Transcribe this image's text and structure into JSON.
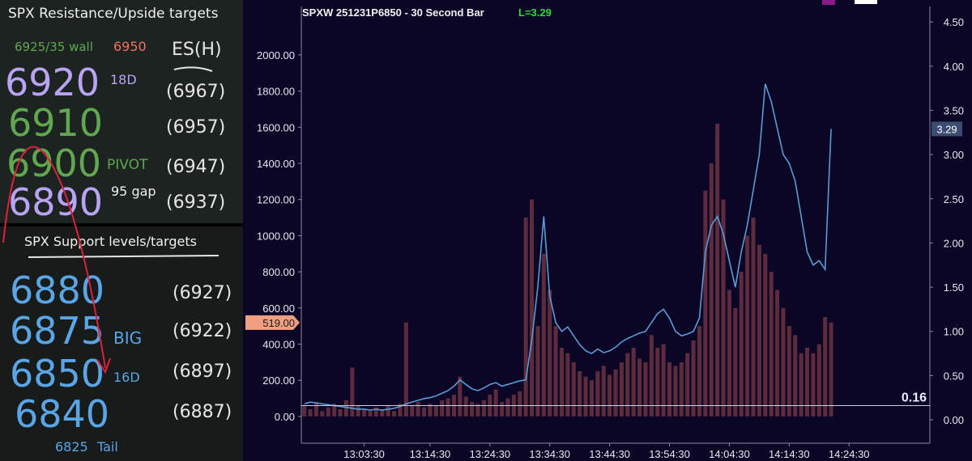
{
  "panels": [
    {
      "title": "SPX Resistance/Upside targets",
      "wall": "6925/35 wall",
      "wall_high": "6950",
      "es_header": "ES(H)",
      "levels": [
        {
          "level": "6920",
          "note": "18D",
          "es": "(6967)"
        },
        {
          "level": "6910",
          "es": "(6957)"
        },
        {
          "level": "6900",
          "note": "PIVOT",
          "es": "(6947)"
        },
        {
          "level": "6890",
          "note": "95 gap",
          "es": "(6937)"
        }
      ]
    },
    {
      "title": "SPX Support levels/targets",
      "levels": [
        {
          "level": "6880",
          "es": "(6927)"
        },
        {
          "level": "6875",
          "note": "BIG",
          "es": "(6922)"
        },
        {
          "level": "6850",
          "note": "16D",
          "es": "(6897)"
        },
        {
          "level": "6840",
          "es": "(6887)"
        }
      ],
      "footer": {
        "level": "6825",
        "note": "Tail"
      }
    }
  ],
  "chart_data": {
    "type": "combo",
    "title": "SPXW 251231P6850 - 30 Second Bar",
    "last_label": "L=3.29",
    "x": [
      46410,
      46470,
      46530,
      46590,
      46650,
      46710,
      46770,
      46830,
      46890,
      46950,
      47010,
      47070,
      47130,
      47190,
      47250,
      47310,
      47370,
      47430,
      47490,
      47550,
      47610,
      47670,
      47730,
      47790,
      47850,
      47910,
      47970,
      48030,
      48090,
      48150,
      48210,
      48270,
      48330,
      48390,
      48450,
      48510,
      48570,
      48630,
      48690,
      48750,
      48810,
      48870,
      48930,
      48990,
      49050,
      49110,
      49170,
      49230,
      49290,
      49350,
      49410,
      49470,
      49530,
      49590,
      49650,
      49710,
      49770,
      49830,
      49890,
      49950,
      50010,
      50070,
      50130,
      50190,
      50250,
      50310,
      50370,
      50430,
      50490,
      50550,
      50610,
      50670,
      50730,
      50790,
      50850,
      50910,
      50970,
      51030,
      51090,
      51150,
      51210,
      51270,
      51330,
      51390,
      51450,
      51510,
      51570,
      51630,
      51690
    ],
    "xlim": [
      46380,
      52680
    ],
    "xticks": [
      {
        "value": 47010,
        "label": "13:03:30"
      },
      {
        "value": 47670,
        "label": "13:14:30"
      },
      {
        "value": 48270,
        "label": "13:24:30"
      },
      {
        "value": 48870,
        "label": "13:34:30"
      },
      {
        "value": 49470,
        "label": "13:44:30"
      },
      {
        "value": 50070,
        "label": "13:54:30"
      },
      {
        "value": 50670,
        "label": "14:04:30"
      },
      {
        "value": 51270,
        "label": "14:14:30"
      },
      {
        "value": 51870,
        "label": "14:24:30"
      }
    ],
    "ylim": [
      -148,
      2268
    ],
    "yticks": [
      {
        "value": 0,
        "label": "0.00"
      },
      {
        "value": 200,
        "label": "200.00"
      },
      {
        "value": 400,
        "label": "400.00"
      },
      {
        "value": 600,
        "label": "600.00"
      },
      {
        "value": 800,
        "label": "800.00"
      },
      {
        "value": 1000,
        "label": "1000.00"
      },
      {
        "value": 1200,
        "label": "1200.00"
      },
      {
        "value": 1400,
        "label": "1400.00"
      },
      {
        "value": 1600,
        "label": "1600.00"
      },
      {
        "value": 1800,
        "label": "1800.00"
      },
      {
        "value": 2000,
        "label": "2000.00"
      }
    ],
    "y2lim": [
      -0.265,
      4.675
    ],
    "y2ticks": [
      {
        "value": 0,
        "label": "0.00"
      },
      {
        "value": 0.5,
        "label": "0.50"
      },
      {
        "value": 1,
        "label": "1.00"
      },
      {
        "value": 1.5,
        "label": "1.50"
      },
      {
        "value": 2,
        "label": "2.00"
      },
      {
        "value": 2.5,
        "label": "2.50"
      },
      {
        "value": 3,
        "label": "3.00"
      },
      {
        "value": 3.5,
        "label": "3.50"
      },
      {
        "value": 4,
        "label": "4.00"
      },
      {
        "value": 4.5,
        "label": "4.50"
      }
    ],
    "series": [
      {
        "type": "bar",
        "color": "#5c2c3c",
        "values": [
          60,
          40,
          80,
          30,
          50,
          70,
          40,
          90,
          270,
          60,
          40,
          30,
          50,
          40,
          60,
          30,
          70,
          520,
          60,
          80,
          50,
          70,
          60,
          90,
          100,
          120,
          220,
          110,
          80,
          70,
          90,
          120,
          150,
          80,
          100,
          120,
          140,
          1100,
          1200,
          500,
          900,
          700,
          500,
          380,
          350,
          300,
          250,
          220,
          200,
          250,
          280,
          230,
          260,
          300,
          350,
          380,
          320,
          300,
          450,
          380,
          400,
          300,
          280,
          300,
          350,
          420,
          500,
          1250,
          1400,
          1620,
          1200,
          700,
          600,
          800,
          1000,
          1100,
          950,
          900,
          800,
          700,
          600,
          500,
          450,
          350,
          380,
          350,
          400,
          550,
          519
        ]
      },
      {
        "type": "line",
        "axis": "y2",
        "color": "#5b9bd5",
        "values": [
          0.18,
          0.2,
          0.19,
          0.18,
          0.17,
          0.16,
          0.15,
          0.14,
          0.13,
          0.12,
          0.12,
          0.11,
          0.12,
          0.11,
          0.12,
          0.13,
          0.15,
          0.18,
          0.2,
          0.22,
          0.24,
          0.25,
          0.27,
          0.3,
          0.33,
          0.38,
          0.45,
          0.4,
          0.35,
          0.33,
          0.36,
          0.4,
          0.42,
          0.38,
          0.4,
          0.42,
          0.44,
          0.45,
          0.9,
          1.5,
          2.3,
          1.4,
          1.1,
          1.0,
          1.05,
          0.95,
          0.85,
          0.78,
          0.75,
          0.8,
          0.76,
          0.78,
          0.82,
          0.88,
          0.92,
          0.95,
          0.98,
          1.0,
          1.1,
          1.2,
          1.25,
          1.15,
          1.0,
          0.95,
          0.97,
          1.0,
          1.15,
          1.9,
          2.2,
          2.3,
          2.1,
          1.8,
          1.5,
          1.9,
          2.2,
          2.6,
          3.0,
          3.8,
          3.6,
          3.3,
          3.0,
          2.9,
          2.7,
          2.3,
          1.9,
          1.75,
          1.8,
          1.7,
          3.29
        ]
      }
    ],
    "volume_marker": {
      "value": 519,
      "label": "519.00"
    },
    "price_marker": {
      "value": 3.29,
      "label": "3.29"
    },
    "price_line": {
      "value": 0.16,
      "label": "0.16"
    }
  }
}
